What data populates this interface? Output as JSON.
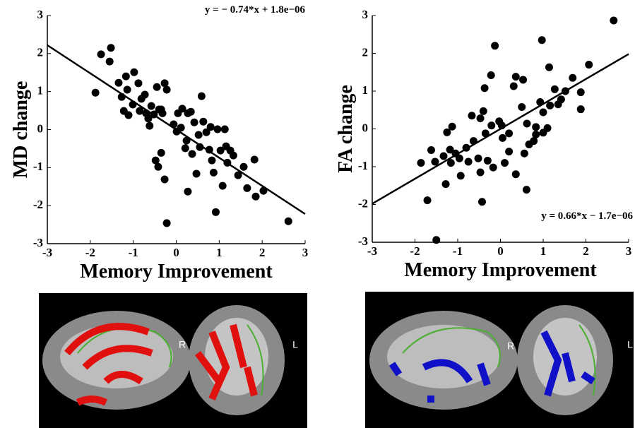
{
  "chart_data": [
    {
      "type": "scatter",
      "ylabel": "MD change",
      "xlabel": "Memory Improvement",
      "color": "#000000",
      "xlim": [
        -3,
        3
      ],
      "ylim": [
        -3,
        3
      ],
      "xticks": [
        -3,
        -2,
        -1,
        0,
        1,
        2,
        3
      ],
      "yticks": [
        -3,
        -2,
        -1,
        0,
        1,
        2,
        3
      ],
      "fit": {
        "slope": -0.74,
        "intercept": 1.8e-06,
        "label": "y = − 0.74*x + 1.8e−06"
      },
      "x": [
        -1.88,
        -1.75,
        -1.52,
        -1.55,
        -1.34,
        -1.27,
        -1.17,
        -1.22,
        -1.11,
        -1.14,
        -0.98,
        -1.01,
        -0.88,
        -0.81,
        -0.85,
        -0.73,
        -0.7,
        -0.65,
        -0.58,
        -0.62,
        -0.52,
        -0.45,
        -0.4,
        -0.32,
        -0.27,
        -0.22,
        -0.35,
        -0.48,
        -0.42,
        -0.35,
        -0.27,
        -0.22,
        -0.06,
        0.01,
        0.04,
        0.11,
        0.14,
        0.21,
        0.24,
        0.27,
        0.27,
        0.34,
        0.42,
        0.37,
        0.47,
        0.52,
        0.59,
        0.55,
        0.63,
        0.7,
        0.77,
        0.83,
        0.87,
        0.8,
        0.92,
        0.96,
        1.03,
        1.08,
        1.13,
        1.16,
        1.19,
        1.26,
        1.33,
        1.44,
        1.57,
        1.65,
        1.82,
        1.85,
        2.03,
        2.61
      ],
      "values": [
        0.97,
        1.98,
        2.15,
        1.79,
        1.23,
        0.86,
        1.4,
        0.49,
        0.38,
        1.05,
        1.51,
        0.66,
        1.22,
        0.81,
        0.49,
        0.92,
        0.43,
        0.29,
        0.62,
        0.1,
        0.4,
        1.12,
        0.53,
        0.43,
        1.22,
        1.05,
        0.53,
        -0.81,
        -0.98,
        -0.61,
        -1.31,
        -2.46,
        0.14,
        -0.05,
        0.43,
        0.05,
        0.55,
        -0.49,
        -0.29,
        -1.63,
        0.43,
        0.47,
        0.19,
        -0.64,
        -1.16,
        -0.14,
        0.88,
        -0.46,
        0.21,
        -0.07,
        -0.53,
        -0.81,
        -1.13,
        0.07,
        -2.17,
        0.01,
        -0.55,
        -1.48,
        0.01,
        -0.44,
        -0.87,
        -0.55,
        -0.68,
        -1.2,
        -0.98,
        -1.54,
        -0.79,
        -1.76,
        -1.61,
        -2.41
      ]
    },
    {
      "type": "scatter",
      "ylabel": "FA change",
      "xlabel": "Memory Improvement",
      "color": "#000000",
      "xlim": [
        -3,
        3
      ],
      "ylim": [
        -3,
        3
      ],
      "xticks": [
        -3,
        -2,
        -1,
        0,
        1,
        2,
        3
      ],
      "yticks": [
        -3,
        -2,
        -1,
        0,
        1,
        2,
        3
      ],
      "fit": {
        "slope": 0.66,
        "intercept": -1.7e-06,
        "label": "y = 0.66*x − 1.7e−06"
      },
      "x": [
        2.65,
        0.97,
        -0.13,
        1.14,
        2.07,
        -0.22,
        0.36,
        0.53,
        1.69,
        0.31,
        -0.37,
        1.27,
        1.52,
        1.88,
        1.42,
        0.93,
        1.35,
        1.16,
        0.5,
        1.88,
        1.0,
        -0.4,
        -0.67,
        -0.47,
        -0.03,
        0.03,
        -1.13,
        -1.25,
        -0.21,
        0.62,
        0.83,
        1.0,
        1.1,
        0.2,
        -0.35,
        0.05,
        -0.63,
        0.67,
        0.78,
        -0.8,
        -1.18,
        -1.05,
        -1.62,
        -1.33,
        -1.86,
        -1.53,
        -1.16,
        -0.96,
        -0.75,
        -0.52,
        -0.3,
        -0.17,
        0.1,
        0.56,
        -0.47,
        -0.93,
        -1.28,
        0.36,
        0.61,
        -0.43,
        -1.71,
        -1.5,
        0.2,
        0.83
      ],
      "values": [
        2.87,
        2.35,
        2.2,
        1.63,
        1.7,
        1.42,
        1.38,
        1.3,
        1.35,
        1.13,
        1.08,
        1.05,
        1.0,
        0.97,
        0.78,
        0.71,
        0.65,
        0.62,
        0.58,
        0.52,
        0.44,
        0.47,
        0.35,
        0.28,
        0.2,
        0.09,
        0.06,
        -0.09,
        0.09,
        0.14,
        0.05,
        -0.1,
        0.02,
        -0.12,
        -0.12,
        -0.24,
        -0.32,
        -0.41,
        -0.32,
        -0.5,
        -0.55,
        -0.65,
        -0.56,
        -0.72,
        -0.9,
        -0.87,
        -0.9,
        -0.78,
        -0.87,
        -0.78,
        -0.84,
        -1.02,
        -0.9,
        -0.65,
        -1.15,
        -1.24,
        -1.46,
        -1.2,
        -1.61,
        -1.93,
        -1.89,
        -2.94,
        -0.6,
        -0.15
      ]
    }
  ],
  "brain_panels": [
    {
      "labels": [
        "R",
        "L"
      ]
    },
    {
      "labels": [
        "R",
        "L"
      ]
    }
  ]
}
